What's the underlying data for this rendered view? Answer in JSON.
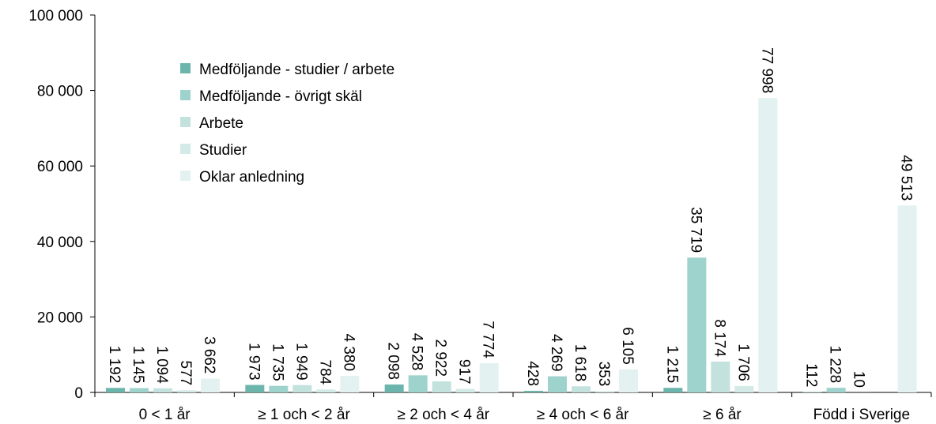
{
  "chart_data": {
    "type": "bar",
    "title": "",
    "xlabel": "",
    "ylabel": "",
    "ylim": [
      0,
      100000
    ],
    "yticks": [
      0,
      20000,
      40000,
      60000,
      80000,
      100000
    ],
    "ytick_labels": [
      "0",
      "20 000",
      "40 000",
      "60 000",
      "80 000",
      "100 000"
    ],
    "grid": false,
    "legend_position": "top-left",
    "categories": [
      "0 < 1 år",
      "≥ 1 och < 2 år",
      "≥ 2 och < 4 år",
      "≥ 4 och < 6 år",
      "≥ 6 år",
      "Född i Sverige"
    ],
    "series": [
      {
        "name": "Medföljande - studier / arbete",
        "color": "#6bb5ad",
        "values": [
          1192,
          1973,
          2098,
          428,
          1215,
          112
        ],
        "labels": [
          "1 192",
          "1 973",
          "2 098",
          "428",
          "1 215",
          "112"
        ]
      },
      {
        "name": "Medföljande - övrigt skäl",
        "color": "#9ed2cc",
        "values": [
          1145,
          1735,
          4528,
          4269,
          35719,
          1228
        ],
        "labels": [
          "1 145",
          "1 735",
          "4 528",
          "4 269",
          "35 719",
          "1 228"
        ]
      },
      {
        "name": "Arbete",
        "color": "#c3e2de",
        "values": [
          1094,
          1949,
          2922,
          1618,
          8174,
          10
        ],
        "labels": [
          "1 094",
          "1 949",
          "2 922",
          "1 618",
          "8 174",
          "10"
        ]
      },
      {
        "name": "Studier",
        "color": "#d3eae7",
        "values": [
          577,
          784,
          917,
          353,
          1706,
          0
        ],
        "labels": [
          "577",
          "784",
          "917",
          "353",
          "1 706",
          ""
        ]
      },
      {
        "name": "Oklar anledning",
        "color": "#e3f2f0",
        "values": [
          3662,
          4380,
          7774,
          6105,
          77998,
          49513
        ],
        "labels": [
          "3 662",
          "4 380",
          "7 774",
          "6 105",
          "77 998",
          "49 513"
        ]
      }
    ]
  }
}
